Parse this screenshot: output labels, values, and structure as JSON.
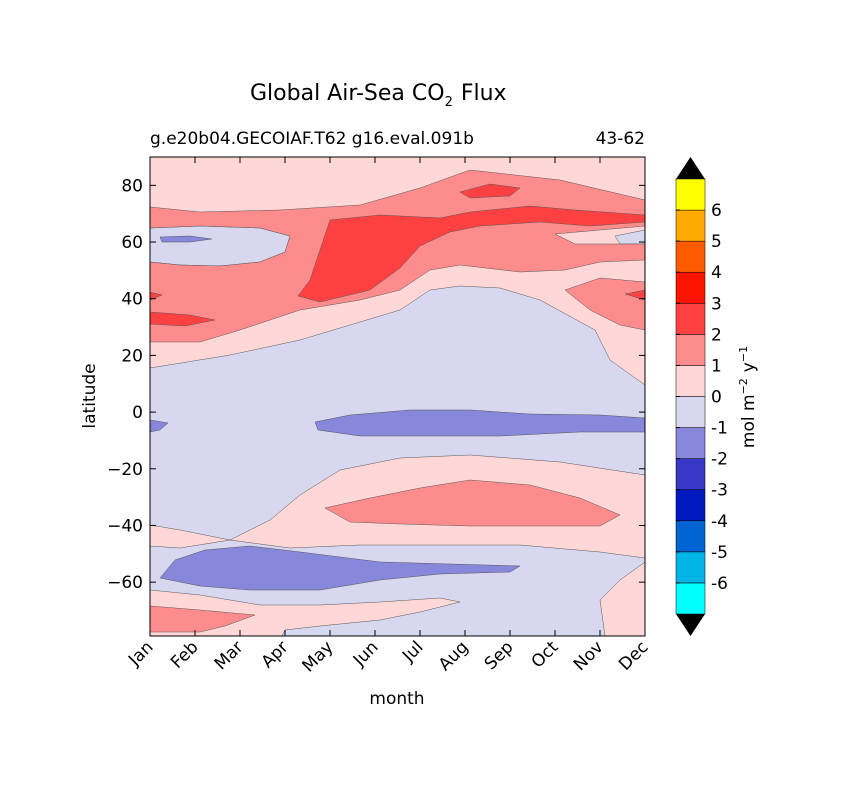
{
  "chart_data": {
    "type": "heatmap",
    "title": "Global Air-Sea CO",
    "title_subscript": "2",
    "title_suffix": "Flux",
    "subtitle_left": "g.e20b04.GECOIAF.T62 g16.eval.091b",
    "subtitle_right": "43-62",
    "xlabel": "month",
    "ylabel": "latitude",
    "x_categories": [
      "Jan",
      "Feb",
      "Mar",
      "Apr",
      "May",
      "Jun",
      "Jul",
      "Aug",
      "Sep",
      "Oct",
      "Nov",
      "Dec"
    ],
    "y_ticks": [
      80,
      60,
      40,
      20,
      0,
      -20,
      -40,
      -60
    ],
    "ylim": [
      -79,
      90
    ],
    "colorbar": {
      "label_main": "mol m",
      "label_exp1": "−2",
      "label_mid": "y",
      "label_exp2": "−1",
      "levels": [
        -6,
        -5,
        -4,
        -3,
        -2,
        -1,
        0,
        1,
        2,
        3,
        4,
        5,
        6
      ],
      "colors": [
        "#00ffff",
        "#00b4e6",
        "#0064d2",
        "#0019be",
        "#3737c8",
        "#8787dc",
        "#d7d7f0",
        "#ffd7d7",
        "#ff8c8c",
        "#ff4141",
        "#ff1400",
        "#ff5a00",
        "#ffaa00",
        "#ffff00"
      ],
      "extend": "both",
      "extend_color": "#000000"
    },
    "field_description_bands": [
      {
        "lat_min": 66,
        "lat_max": 90,
        "level_range": [
          0,
          1
        ]
      },
      {
        "lat_min": 40,
        "lat_max": 72,
        "level_range": [
          1,
          3
        ]
      },
      {
        "lat_min": 15,
        "lat_max": 45,
        "level_range": [
          0,
          2
        ]
      },
      {
        "lat_min": -15,
        "lat_max": 15,
        "level_range": [
          -2,
          0
        ]
      },
      {
        "lat_min": -50,
        "lat_max": -15,
        "level_range": [
          0,
          2
        ]
      },
      {
        "lat_min": -65,
        "lat_max": -48,
        "level_range": [
          -2,
          0
        ]
      },
      {
        "lat_min": -79,
        "lat_max": -65,
        "level_range": [
          0,
          2
        ]
      }
    ]
  }
}
